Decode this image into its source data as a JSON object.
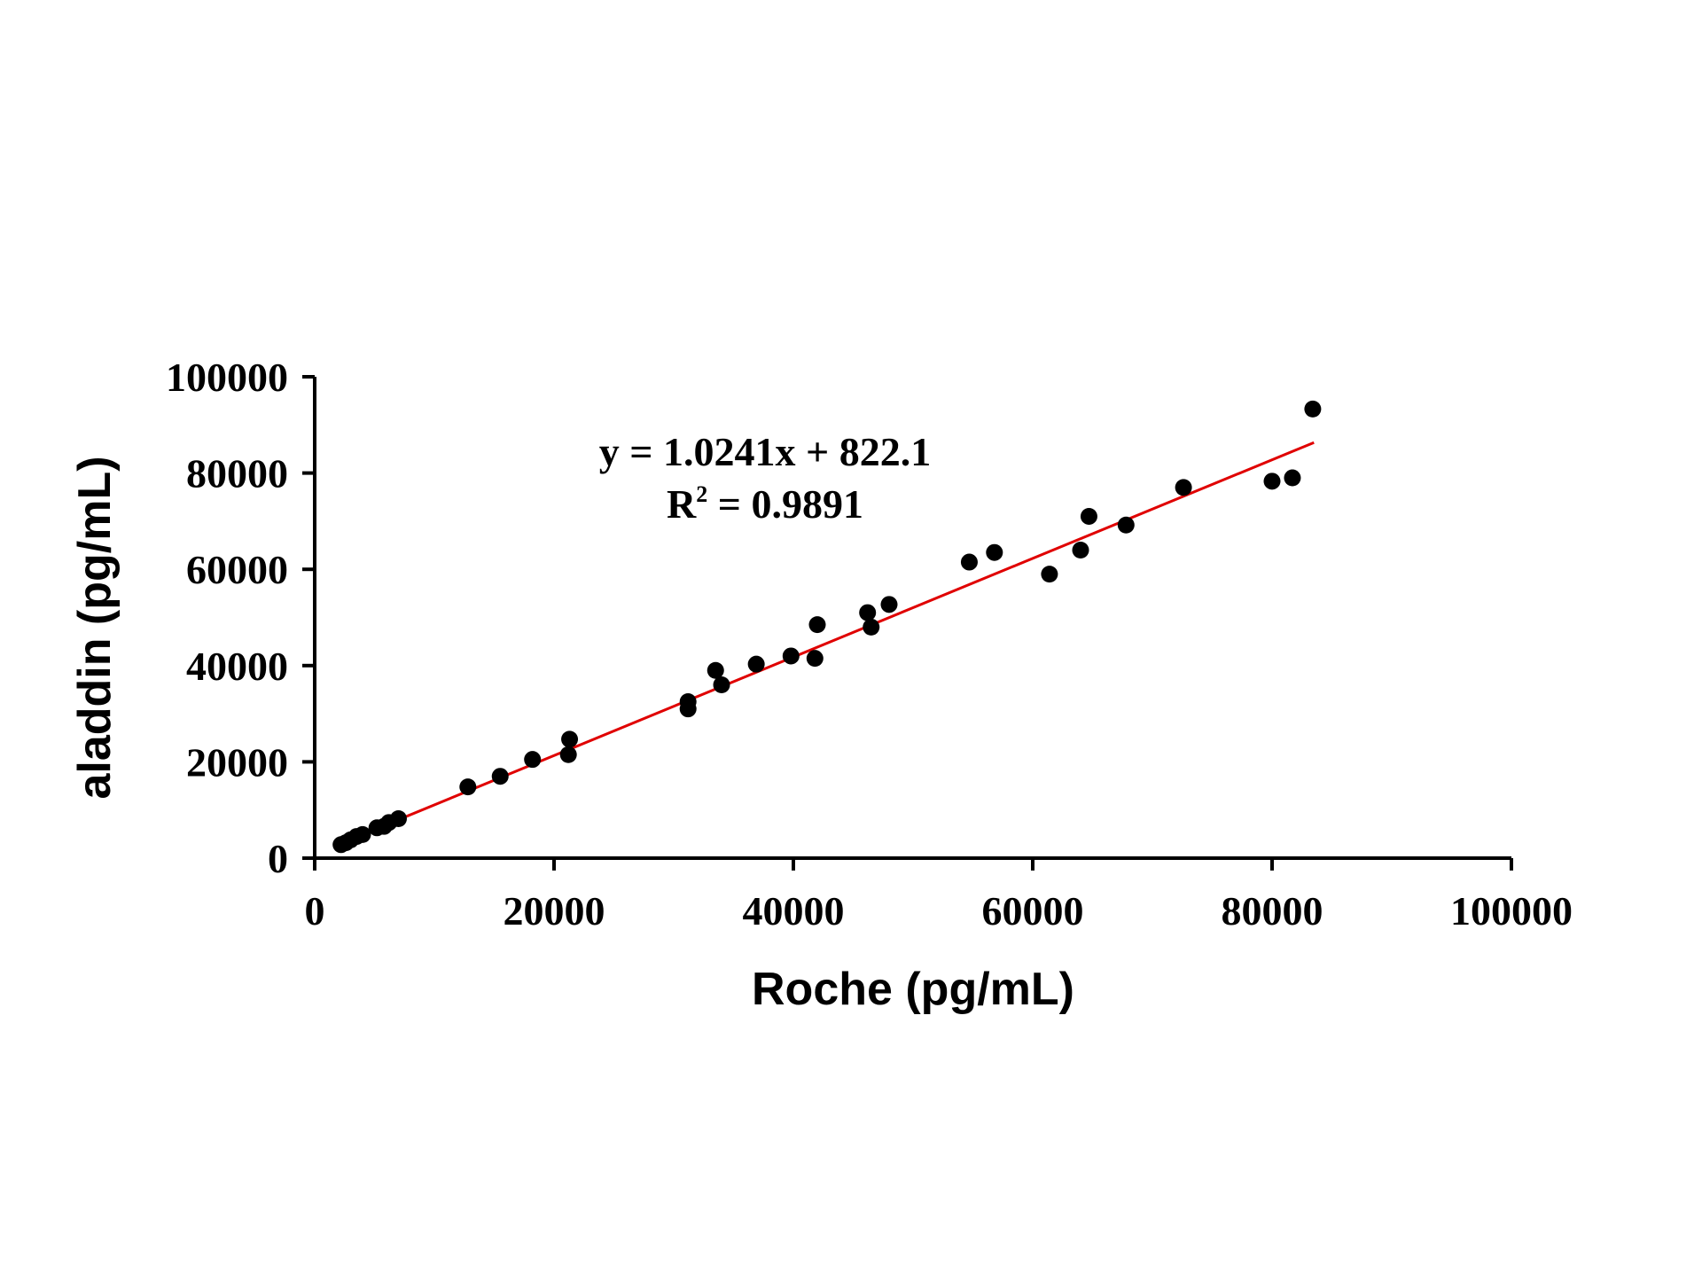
{
  "chart_data": {
    "type": "scatter",
    "xlabel": "Roche (pg/mL)",
    "ylabel": "aladdin (pg/mL)",
    "xlim": [
      0,
      100000
    ],
    "ylim": [
      0,
      100000
    ],
    "x_ticks": [
      "0",
      "20000",
      "40000",
      "60000",
      "80000",
      "100000"
    ],
    "y_ticks": [
      "0",
      "20000",
      "40000",
      "60000",
      "80000",
      "100000"
    ],
    "x_tick_values": [
      0,
      20000,
      40000,
      60000,
      80000,
      100000
    ],
    "y_tick_values": [
      0,
      20000,
      40000,
      60000,
      80000,
      100000
    ],
    "grid": false,
    "legend": "none",
    "colors": {
      "points": "#000000",
      "trendline": "#e00000",
      "axes": "#000000"
    },
    "series": [
      {
        "points": [
          {
            "x": 2200,
            "y": 2800
          },
          {
            "x": 2600,
            "y": 3200
          },
          {
            "x": 3000,
            "y": 3800
          },
          {
            "x": 3500,
            "y": 4500
          },
          {
            "x": 4000,
            "y": 4900
          },
          {
            "x": 5200,
            "y": 6300
          },
          {
            "x": 5800,
            "y": 6600
          },
          {
            "x": 6200,
            "y": 7400
          },
          {
            "x": 7000,
            "y": 8200
          },
          {
            "x": 12800,
            "y": 14800
          },
          {
            "x": 15500,
            "y": 17000
          },
          {
            "x": 18200,
            "y": 20500
          },
          {
            "x": 21200,
            "y": 21500
          },
          {
            "x": 21300,
            "y": 24700
          },
          {
            "x": 31200,
            "y": 31000
          },
          {
            "x": 31200,
            "y": 32500
          },
          {
            "x": 33500,
            "y": 39000
          },
          {
            "x": 34000,
            "y": 36000
          },
          {
            "x": 36900,
            "y": 40300
          },
          {
            "x": 39800,
            "y": 42000
          },
          {
            "x": 41800,
            "y": 41500
          },
          {
            "x": 42000,
            "y": 48500
          },
          {
            "x": 46200,
            "y": 51000
          },
          {
            "x": 46500,
            "y": 48000
          },
          {
            "x": 48000,
            "y": 52700
          },
          {
            "x": 54700,
            "y": 61500
          },
          {
            "x": 56800,
            "y": 63500
          },
          {
            "x": 61400,
            "y": 59000
          },
          {
            "x": 64000,
            "y": 64000
          },
          {
            "x": 64700,
            "y": 71000
          },
          {
            "x": 67800,
            "y": 69200
          },
          {
            "x": 72600,
            "y": 77000
          },
          {
            "x": 80000,
            "y": 78300
          },
          {
            "x": 81700,
            "y": 79000
          },
          {
            "x": 83400,
            "y": 93300
          }
        ]
      }
    ],
    "trendline": {
      "slope": 1.0241,
      "intercept": 822.1,
      "x_range": [
        2200,
        83500
      ]
    },
    "annotations": {
      "equation": "y = 1.0241x + 822.1",
      "r_squared_prefix": "R",
      "r_squared_sup": "2",
      "r_squared_suffix": " = 0.9891"
    }
  }
}
